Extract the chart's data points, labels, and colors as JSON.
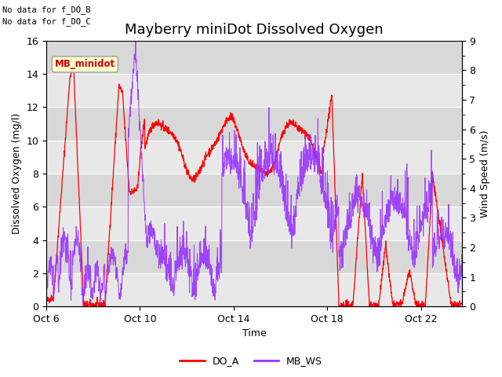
{
  "title": "Mayberry miniDot Dissolved Oxygen",
  "xlabel": "Time",
  "ylabel_left": "Dissolved Oxygen (mg/l)",
  "ylabel_right": "Wind Speed (m/s)",
  "ylim_left": [
    0,
    16
  ],
  "ylim_right": [
    0.0,
    9.0
  ],
  "yticks_left": [
    0,
    2,
    4,
    6,
    8,
    10,
    12,
    14,
    16
  ],
  "yticks_right": [
    0.0,
    1.0,
    2.0,
    3.0,
    4.0,
    5.0,
    6.0,
    7.0,
    8.0,
    9.0
  ],
  "annotation1": "No data for f_DO_B",
  "annotation2": "No data for f_DO_C",
  "legend_box_label": "MB_minidot",
  "legend_box_facecolor": "#ffffcc",
  "legend_box_edgecolor": "#aaaaaa",
  "do_color": "#ff0000",
  "ws_color": "#9933ff",
  "plot_bg_light": "#e8e8e8",
  "plot_bg_dark": "#d8d8d8",
  "fig_bg_color": "#ffffff",
  "legend_do_label": "DO_A",
  "legend_ws_label": "MB_WS",
  "title_fontsize": 13,
  "axis_label_fontsize": 9,
  "tick_fontsize": 9,
  "band_colors": [
    "#e8e8e8",
    "#d8d8d8"
  ],
  "band_edges_left": [
    0,
    2,
    4,
    6,
    8,
    10,
    12,
    14
  ],
  "band_edges_right": [
    2,
    4,
    6,
    8,
    10,
    12,
    14,
    16
  ]
}
